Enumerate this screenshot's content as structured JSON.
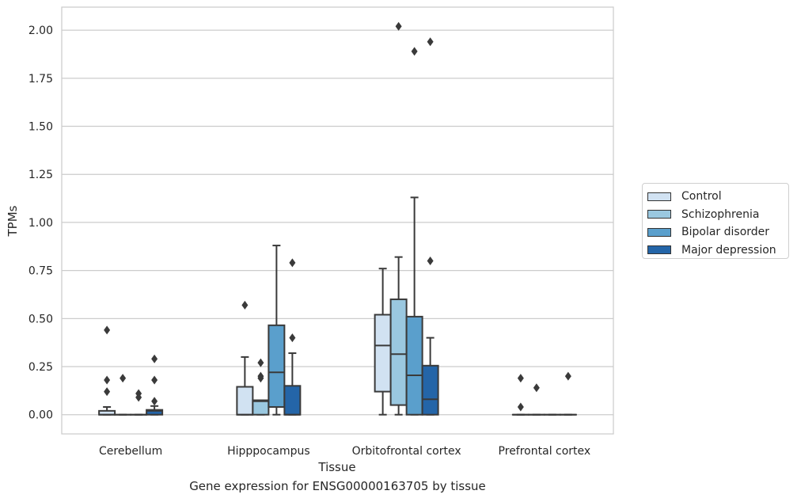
{
  "caption": "Gene expression for ENSG00000163705 by tissue",
  "chart_data": {
    "type": "boxplot",
    "xlabel": "Tissue",
    "ylabel": "TPMs",
    "ylim": [
      -0.1,
      2.12
    ],
    "yticks": [
      0.0,
      0.25,
      0.5,
      0.75,
      1.0,
      1.25,
      1.5,
      1.75,
      2.0
    ],
    "ytick_labels": [
      "0.00",
      "0.25",
      "0.50",
      "0.75",
      "1.00",
      "1.25",
      "1.50",
      "1.75",
      "2.00"
    ],
    "grid": true,
    "legend_position": "right",
    "categories": [
      "Cerebellum",
      "Hipppocampus",
      "Orbitofrontal cortex",
      "Prefrontal cortex"
    ],
    "series": [
      {
        "name": "Control",
        "color": "#d1e2f2",
        "boxes": [
          {
            "q1": 0.0,
            "median": 0.0,
            "q3": 0.02,
            "whisker_low": 0.0,
            "whisker_high": 0.04,
            "outliers": [
              0.44,
              0.18,
              0.12
            ]
          },
          {
            "q1": 0.0,
            "median": 0.0,
            "q3": 0.145,
            "whisker_low": 0.0,
            "whisker_high": 0.3,
            "outliers": [
              0.57
            ]
          },
          {
            "q1": 0.12,
            "median": 0.36,
            "q3": 0.52,
            "whisker_low": 0.0,
            "whisker_high": 0.76,
            "outliers": []
          },
          {
            "q1": 0.0,
            "median": 0.0,
            "q3": 0.0,
            "whisker_low": 0.0,
            "whisker_high": 0.0,
            "outliers": [
              0.19,
              0.04
            ]
          }
        ]
      },
      {
        "name": "Schizophrenia",
        "color": "#9ac8e0",
        "boxes": [
          {
            "q1": 0.0,
            "median": 0.0,
            "q3": 0.0,
            "whisker_low": 0.0,
            "whisker_high": 0.0,
            "outliers": [
              0.19
            ]
          },
          {
            "q1": 0.0,
            "median": 0.07,
            "q3": 0.075,
            "whisker_low": 0.0,
            "whisker_high": 0.075,
            "outliers": [
              0.27,
              0.2,
              0.19
            ]
          },
          {
            "q1": 0.05,
            "median": 0.315,
            "q3": 0.6,
            "whisker_low": 0.0,
            "whisker_high": 0.82,
            "outliers": [
              2.02
            ]
          },
          {
            "q1": 0.0,
            "median": 0.0,
            "q3": 0.0,
            "whisker_low": 0.0,
            "whisker_high": 0.0,
            "outliers": [
              0.14
            ]
          }
        ]
      },
      {
        "name": "Bipolar disorder",
        "color": "#5a9fcc",
        "boxes": [
          {
            "q1": 0.0,
            "median": 0.0,
            "q3": 0.0,
            "whisker_low": 0.0,
            "whisker_high": 0.0,
            "outliers": [
              0.11,
              0.09
            ]
          },
          {
            "q1": 0.04,
            "median": 0.22,
            "q3": 0.465,
            "whisker_low": 0.0,
            "whisker_high": 0.88,
            "outliers": []
          },
          {
            "q1": 0.0,
            "median": 0.205,
            "q3": 0.51,
            "whisker_low": 0.0,
            "whisker_high": 1.13,
            "outliers": [
              1.89
            ]
          },
          {
            "q1": 0.0,
            "median": 0.0,
            "q3": 0.0,
            "whisker_low": 0.0,
            "whisker_high": 0.0,
            "outliers": []
          }
        ]
      },
      {
        "name": "Major depression",
        "color": "#2465a8",
        "boxes": [
          {
            "q1": 0.0,
            "median": 0.02,
            "q3": 0.025,
            "whisker_low": 0.0,
            "whisker_high": 0.045,
            "outliers": [
              0.29,
              0.18,
              0.07
            ]
          },
          {
            "q1": 0.0,
            "median": 0.0,
            "q3": 0.15,
            "whisker_low": 0.0,
            "whisker_high": 0.32,
            "outliers": [
              0.79,
              0.4
            ]
          },
          {
            "q1": 0.0,
            "median": 0.08,
            "q3": 0.255,
            "whisker_low": 0.0,
            "whisker_high": 0.4,
            "outliers": [
              1.94,
              0.8
            ]
          },
          {
            "q1": 0.0,
            "median": 0.0,
            "q3": 0.0,
            "whisker_low": 0.0,
            "whisker_high": 0.0,
            "outliers": [
              0.2
            ]
          }
        ]
      }
    ]
  }
}
